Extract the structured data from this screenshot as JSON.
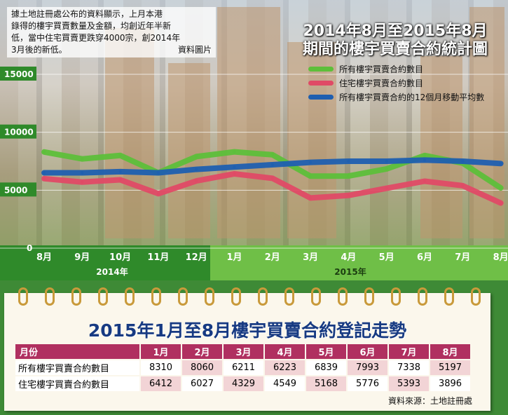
{
  "caption": {
    "lines": [
      "據土地註冊處公布的資料顯示，上月本港",
      "錄得的樓宇買賣數量及金額，均創近年半新",
      "低，當中住宅買賣更跌穿4000宗，創2014年",
      "3月後的新低。"
    ],
    "credit": "資料圖片"
  },
  "chart_title": [
    "2014年8月至2015年8月",
    "期間的樓宇買賣合約統計圖"
  ],
  "chart_data": {
    "type": "line",
    "x_labels": [
      "8月",
      "9月",
      "10月",
      "11月",
      "12月",
      "1月",
      "2月",
      "3月",
      "4月",
      "5月",
      "6月",
      "7月",
      "8月"
    ],
    "year_labels": [
      "2014年",
      "2015年"
    ],
    "y_ticks": [
      0,
      5000,
      10000,
      15000
    ],
    "ylim": [
      0,
      15000
    ],
    "series": [
      {
        "name": "所有樓宇買賣合約數目",
        "color": "#5dbf3a",
        "values": [
          8300,
          7700,
          8000,
          6500,
          7900,
          8310,
          8060,
          6211,
          6223,
          6839,
          7993,
          7338,
          5197
        ]
      },
      {
        "name": "住宅樓宇買賣合約數目",
        "color": "#e04a66",
        "values": [
          6000,
          5700,
          5900,
          4700,
          5800,
          6412,
          6027,
          4329,
          4549,
          5168,
          5776,
          5393,
          3896
        ]
      },
      {
        "name": "所有樓宇買賣合約的12個月移動平均數",
        "color": "#1f5fb0",
        "values": [
          6500,
          6500,
          6600,
          6500,
          6800,
          7000,
          7200,
          7400,
          7500,
          7500,
          7600,
          7500,
          7300
        ]
      }
    ]
  },
  "table": {
    "title": "2015年1月至8月樓宇買賣合約登記走勢",
    "header": "月份",
    "months": [
      "1月",
      "2月",
      "3月",
      "4月",
      "5月",
      "6月",
      "7月",
      "8月"
    ],
    "rows": [
      {
        "label": "所有樓宇買賣合約數目",
        "values": [
          "8310",
          "8060",
          "6211",
          "6223",
          "6839",
          "7993",
          "7338",
          "5197"
        ]
      },
      {
        "label": "住宅樓宇買賣合約數目",
        "values": [
          "6412",
          "6027",
          "4329",
          "4549",
          "5168",
          "5776",
          "5393",
          "3896"
        ]
      }
    ],
    "source": "資料來源：土地註冊處"
  },
  "colors": {
    "axis_green": "#2f8a2a",
    "header": "#b03060",
    "title_blue": "#173a82"
  }
}
